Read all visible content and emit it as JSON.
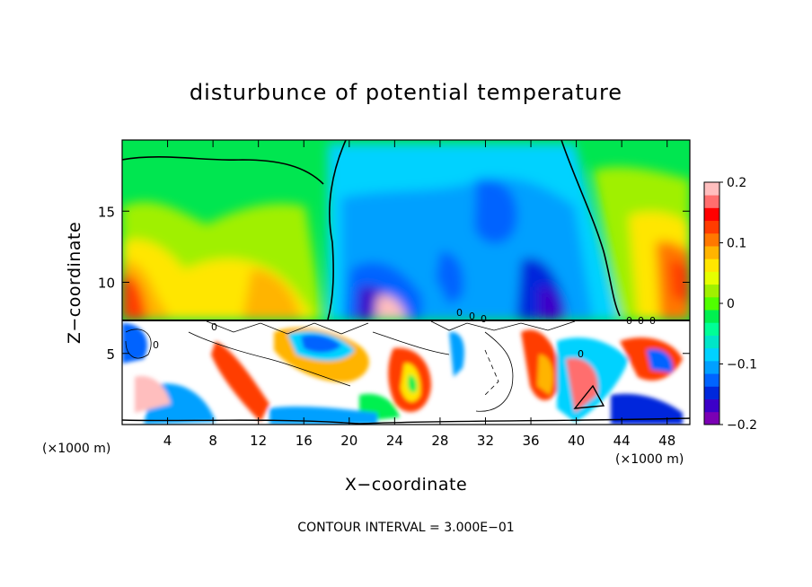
{
  "chart_data": {
    "type": "heatmap",
    "title": "disturbunce of potential temperature",
    "xlabel": "X−coordinate",
    "ylabel": "Z−coordinate",
    "x_unit_left": "(×1000 m)",
    "x_unit_right": "(×1000 m)",
    "footnote": "CONTOUR INTERVAL = 3.000E−01",
    "xlim": [
      0,
      50
    ],
    "ylim": [
      0,
      20
    ],
    "x_ticks": [
      4,
      8,
      12,
      16,
      20,
      24,
      28,
      32,
      36,
      40,
      44,
      48
    ],
    "x_tick_labels": [
      "4",
      "8",
      "12",
      "16",
      "20",
      "24",
      "28",
      "32",
      "36",
      "40",
      "44",
      "48"
    ],
    "y_ticks": [
      5,
      10,
      15
    ],
    "y_tick_labels": [
      "5",
      "10",
      "15"
    ],
    "colorbar": {
      "min": -0.2,
      "max": 0.2,
      "ticks": [
        0.2,
        0.1,
        0,
        -0.1,
        -0.2
      ],
      "tick_labels": [
        "0.2",
        "0.1",
        "0",
        "−0.1",
        "−0.2"
      ],
      "colors": [
        "#7b00b4",
        "#3c00c8",
        "#0028dc",
        "#0064ff",
        "#00a0ff",
        "#00d2ff",
        "#00e6c8",
        "#00ff96",
        "#00f050",
        "#50ff00",
        "#a0f000",
        "#e6ff00",
        "#ffe600",
        "#ffb400",
        "#ff7800",
        "#ff3c00",
        "#ff0000",
        "#ff6e6e",
        "#ffbebe"
      ]
    },
    "upper_layer": {
      "z_range": [
        7.2,
        20
      ],
      "zero_contour_x_left": 18.5,
      "zero_contour_x_right": 44,
      "max_value": 0.2,
      "min_value": -0.2
    },
    "contour_labels": [
      "0",
      "0",
      "0",
      "0",
      "0",
      "0",
      "0",
      "0",
      "0"
    ]
  }
}
